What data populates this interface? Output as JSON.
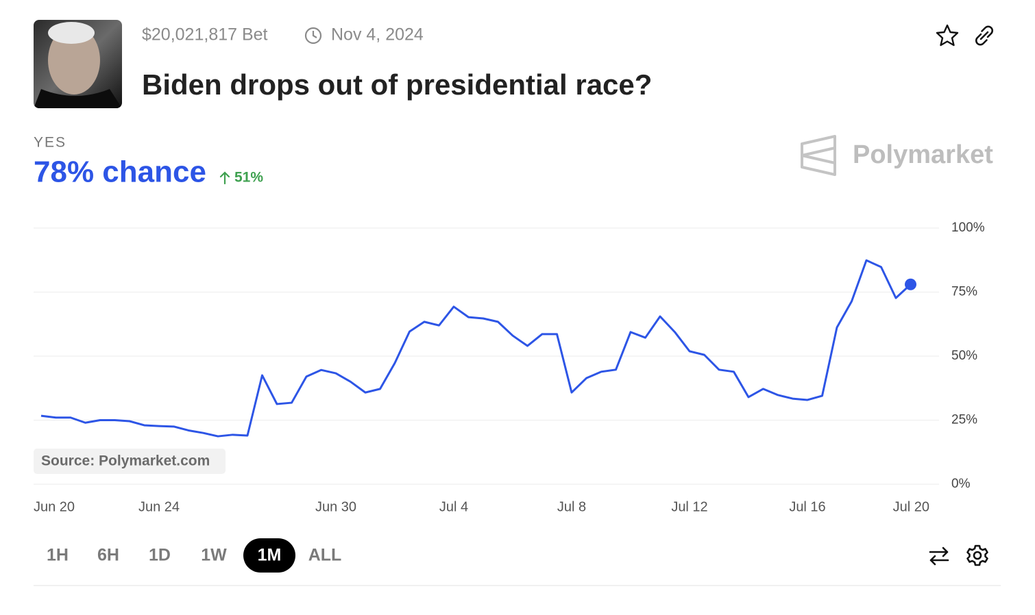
{
  "bet": "$20,021,817 Bet",
  "end_date": "Nov 4, 2024",
  "question": "Biden drops out of presidential race?",
  "outcome": "YES",
  "chance": "78% chance",
  "change": "51%",
  "brand": "Polymarket",
  "source": "Source: Polymarket.com",
  "ranges": [
    "1H",
    "6H",
    "1D",
    "1W",
    "1M",
    "ALL"
  ],
  "active_range": 4,
  "chart_data": {
    "type": "line",
    "categories": [
      "Jun 20",
      null,
      null,
      null,
      null,
      null,
      null,
      null,
      "Jun 24",
      null,
      null,
      null,
      null,
      null,
      null,
      null,
      null,
      null,
      null,
      null,
      "Jun 30",
      null,
      null,
      null,
      null,
      null,
      null,
      null,
      "Jul 4",
      null,
      null,
      null,
      null,
      null,
      null,
      null,
      "Jul 8",
      null,
      null,
      null,
      null,
      null,
      null,
      null,
      "Jul 12",
      null,
      null,
      null,
      null,
      null,
      null,
      null,
      "Jul 16",
      null,
      null,
      null,
      null,
      null,
      null,
      null,
      "Jul 20"
    ],
    "series": [
      {
        "name": "YES",
        "color": "#2d55e6",
        "values": [
          26.7,
          26,
          26,
          24,
          25,
          25,
          24.6,
          23,
          22.7,
          22.5,
          21,
          20,
          18.7,
          19.3,
          19,
          42.5,
          31.3,
          31.8,
          42,
          44.6,
          43.3,
          40,
          35.8,
          37.2,
          47.3,
          59.6,
          63.4,
          62,
          69.3,
          65.2,
          64.7,
          63.4,
          58,
          54,
          58.6,
          58.6,
          35.8,
          41.4,
          43.9,
          44.7,
          59.4,
          57.2,
          65.5,
          59.4,
          51.9,
          50.5,
          44.7,
          43.9,
          34,
          37.2,
          34.8,
          33.4,
          32.9,
          34.5,
          61.2,
          71.4,
          87.4,
          84.8,
          72.7,
          78,
          null
        ]
      }
    ],
    "ylim": [
      0,
      100
    ],
    "yticks": [
      {
        "value": 0,
        "label": "0%"
      },
      {
        "value": 25,
        "label": "25%"
      },
      {
        "value": 50,
        "label": "50%"
      },
      {
        "value": 75,
        "label": "75%"
      },
      {
        "value": 100,
        "label": "100%"
      }
    ],
    "grid": true
  }
}
